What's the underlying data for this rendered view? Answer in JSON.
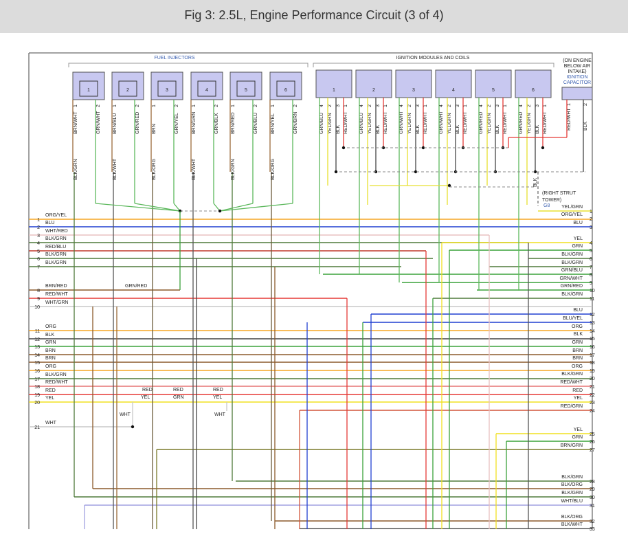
{
  "header": {
    "title": "Fig 3: 2.5L, Engine Performance Circuit (3 of 4)"
  },
  "labels": {
    "fuel_injectors": "FUEL INJECTORS",
    "ignition": "IGNITION MODULES AND COILS",
    "capacitor_note": [
      "(ON ENGINE",
      "BELOW AIR",
      "INTAKE)"
    ],
    "capacitor_name": [
      "IGNITION",
      "CAPACITOR"
    ],
    "ground_wire": "BLK",
    "ground_note": [
      "(RIGHT STRUT",
      "TOWER)"
    ],
    "ground_id": "G8"
  },
  "injectors": [
    {
      "number": "1",
      "pins": [
        {
          "pin": "1",
          "wire": "BRN/WHT",
          "color": "#9a6a3a"
        },
        {
          "pin": "2",
          "wire": "GRN/WHT",
          "color": "#5cb85c"
        }
      ],
      "lower_wire": "BLK/GRN",
      "lower_color": "#4f7a3a"
    },
    {
      "number": "2",
      "pins": [
        {
          "pin": "1",
          "wire": "BRN/BLU",
          "color": "#9a6a3a"
        },
        {
          "pin": "2",
          "wire": "GRN/RED",
          "color": "#5cb85c"
        }
      ],
      "lower_wire": "BLK/WHT",
      "lower_color": "#555"
    },
    {
      "number": "3",
      "pins": [
        {
          "pin": "1",
          "wire": "BRN",
          "color": "#9a6a3a"
        },
        {
          "pin": "2",
          "wire": "GRN/YEL",
          "color": "#5cb85c"
        }
      ],
      "lower_wire": "BLK/ORG",
      "lower_color": "#6b5a3a"
    },
    {
      "number": "4",
      "pins": [
        {
          "pin": "1",
          "wire": "BRN/GRN",
          "color": "#9a6a3a"
        },
        {
          "pin": "2",
          "wire": "GRN/BLK",
          "color": "#5cb85c"
        }
      ],
      "lower_wire": "BLK/WHT",
      "lower_color": "#555"
    },
    {
      "number": "5",
      "pins": [
        {
          "pin": "1",
          "wire": "BRN/RED",
          "color": "#9a6a3a"
        },
        {
          "pin": "2",
          "wire": "GRN/BLU",
          "color": "#5cb85c"
        }
      ],
      "lower_wire": "BLK/GRN",
      "lower_color": "#4f7a3a"
    },
    {
      "number": "6",
      "pins": [
        {
          "pin": "1",
          "wire": "BRN/YEL",
          "color": "#9a6a3a"
        },
        {
          "pin": "2",
          "wire": "GRN/BRN",
          "color": "#5cb85c"
        }
      ],
      "lower_wire": "BLK/ORG",
      "lower_color": "#6b5a3a"
    }
  ],
  "modules": [
    {
      "number": "1",
      "pins": [
        {
          "pin": "4",
          "wire": "GRN/BLU",
          "color": "#5cb85c"
        },
        {
          "pin": "2",
          "wire": "YEL/GRN",
          "color": "#e8e030"
        },
        {
          "pin": "3",
          "wire": "BLK",
          "color": "#444"
        },
        {
          "pin": "1",
          "wire": "RED/WHT",
          "color": "#e53935"
        }
      ]
    },
    {
      "number": "2",
      "pins": [
        {
          "pin": "4",
          "wire": "GRN/BLU",
          "color": "#5cb85c"
        },
        {
          "pin": "2",
          "wire": "YEL/GRN",
          "color": "#e8e030"
        },
        {
          "pin": "3",
          "wire": "BLK",
          "color": "#444"
        },
        {
          "pin": "1",
          "wire": "RED/WHT",
          "color": "#e53935"
        }
      ]
    },
    {
      "number": "3",
      "pins": [
        {
          "pin": "4",
          "wire": "GRN/WHT",
          "color": "#5cb85c"
        },
        {
          "pin": "2",
          "wire": "YEL/GRN",
          "color": "#e8e030"
        },
        {
          "pin": "3",
          "wire": "BLK",
          "color": "#444"
        },
        {
          "pin": "1",
          "wire": "RED/WHT",
          "color": "#e53935"
        }
      ]
    },
    {
      "number": "4",
      "pins": [
        {
          "pin": "4",
          "wire": "GRN/WHT",
          "color": "#5cb85c"
        },
        {
          "pin": "2",
          "wire": "YEL/GRN",
          "color": "#e8e030"
        },
        {
          "pin": "3",
          "wire": "BLK",
          "color": "#444"
        },
        {
          "pin": "1",
          "wire": "RED/WHT",
          "color": "#e53935"
        }
      ]
    },
    {
      "number": "5",
      "pins": [
        {
          "pin": "4",
          "wire": "GRN/RED",
          "color": "#5cb85c"
        },
        {
          "pin": "2",
          "wire": "YEL/GRN",
          "color": "#e8e030"
        },
        {
          "pin": "3",
          "wire": "BLK",
          "color": "#444"
        },
        {
          "pin": "1",
          "wire": "RED/WHT",
          "color": "#e53935"
        }
      ]
    },
    {
      "number": "6",
      "pins": [
        {
          "pin": "4",
          "wire": "GRN/RED",
          "color": "#5cb85c"
        },
        {
          "pin": "2",
          "wire": "YEL/GRN",
          "color": "#e8e030"
        },
        {
          "pin": "3",
          "wire": "BLK",
          "color": "#444"
        },
        {
          "pin": "1",
          "wire": "RED/WHT",
          "color": "#e53935"
        }
      ]
    }
  ],
  "capacitor": {
    "pins": [
      {
        "pin": "1",
        "wire": "RED/WHT",
        "color": "#e53935"
      },
      {
        "pin": "2",
        "wire": "BLK",
        "color": "#444"
      }
    ]
  },
  "left_rows": [
    {
      "number": "1",
      "label": "ORG/YEL",
      "color": "#f5a623"
    },
    {
      "number": "2",
      "label": "BLU",
      "color": "#1f3fd1"
    },
    {
      "number": "3",
      "label": "WHT/RED",
      "color": "#e8c0c0"
    },
    {
      "number": "4",
      "label": "BLK/GRN",
      "color": "#4f7a3a"
    },
    {
      "number": "5",
      "label": "RED/BLU",
      "color": "#c0392b"
    },
    {
      "number": "6",
      "label": "BLK/GRN",
      "color": "#4f7a3a"
    },
    {
      "number": "7",
      "label": "BLK/GRN",
      "color": "#4f7a3a"
    },
    {
      "number": "8",
      "label": "BRN/RED",
      "color": "#8b5a2b"
    },
    {
      "number": "9",
      "label": "RED/WHT",
      "color": "#e53935"
    },
    {
      "number": "10",
      "label": "WHT/GRN",
      "color": "#c8c8c8"
    },
    {
      "number": "11",
      "label": "ORG",
      "color": "#f5a623"
    },
    {
      "number": "12",
      "label": "BLK",
      "color": "#444"
    },
    {
      "number": "13",
      "label": "GRN",
      "color": "#3aa23a"
    },
    {
      "number": "14",
      "label": "BRN",
      "color": "#8b5a2b"
    },
    {
      "number": "15",
      "label": "BRN",
      "color": "#8b5a2b"
    },
    {
      "number": "16",
      "label": "ORG",
      "color": "#f5a623"
    },
    {
      "number": "17",
      "label": "BLK/GRN",
      "color": "#4f7a3a"
    },
    {
      "number": "18",
      "label": "RED/WHT",
      "color": "#e57373"
    },
    {
      "number": "19",
      "label": "RED",
      "color": "#e53935"
    },
    {
      "number": "20",
      "label": "YEL",
      "color": "#f0e020"
    },
    {
      "number": "21",
      "label": "WHT",
      "color": "#c8c8c8"
    }
  ],
  "right_rows": [
    {
      "number": "1",
      "label": "YEL/GRN",
      "color": "#e8e030"
    },
    {
      "number": "2",
      "label": "ORG/YEL",
      "color": "#f5a623"
    },
    {
      "number": "3",
      "label": "BLU",
      "color": "#1f3fd1"
    },
    {
      "number": "4",
      "label": "YEL",
      "color": "#f0e020"
    },
    {
      "number": "5",
      "label": "GRN",
      "color": "#3aa23a"
    },
    {
      "number": "6",
      "label": "BLK/GRN",
      "color": "#4f7a3a"
    },
    {
      "number": "7",
      "label": "BLK/GRN",
      "color": "#4f7a3a"
    },
    {
      "number": "8",
      "label": "GRN/BLU",
      "color": "#3aa23a"
    },
    {
      "number": "9",
      "label": "GRN/WHT",
      "color": "#3aa23a"
    },
    {
      "number": "10",
      "label": "GRN/RED",
      "color": "#3aa23a"
    },
    {
      "number": "11",
      "label": "BLK/GRN",
      "color": "#4f7a3a"
    },
    {
      "number": "12",
      "label": "BLU",
      "color": "#1f3fd1"
    },
    {
      "number": "13",
      "label": "BLU/YEL",
      "color": "#1f3fd1"
    },
    {
      "number": "14",
      "label": "ORG",
      "color": "#f5a623"
    },
    {
      "number": "15",
      "label": "BLK",
      "color": "#444"
    },
    {
      "number": "16",
      "label": "GRN",
      "color": "#3aa23a"
    },
    {
      "number": "17",
      "label": "BRN",
      "color": "#8b5a2b"
    },
    {
      "number": "18",
      "label": "BRN",
      "color": "#8b5a2b"
    },
    {
      "number": "19",
      "label": "ORG",
      "color": "#f5a623"
    },
    {
      "number": "20",
      "label": "BLK/GRN",
      "color": "#4f7a3a"
    },
    {
      "number": "21",
      "label": "RED/WHT",
      "color": "#e57373"
    },
    {
      "number": "22",
      "label": "RED",
      "color": "#e53935"
    },
    {
      "number": "23",
      "label": "YEL",
      "color": "#f0e020"
    },
    {
      "number": "24",
      "label": "RED/GRN",
      "color": "#d2553a"
    },
    {
      "number": "25",
      "label": "YEL",
      "color": "#f0e020"
    },
    {
      "number": "26",
      "label": "GRN",
      "color": "#3aa23a"
    },
    {
      "number": "27",
      "label": "BRN/GRN",
      "color": "#7a7a2a"
    },
    {
      "number": "28",
      "label": "BLK/GRN",
      "color": "#4f7a3a"
    },
    {
      "number": "29",
      "label": "BLK/ORG",
      "color": "#8b5a2b"
    },
    {
      "number": "30",
      "label": "BLK/GRN",
      "color": "#4f7a3a"
    },
    {
      "number": "31",
      "label": "WHT/BLU",
      "color": "#a0a0e0"
    },
    {
      "number": "32",
      "label": "BLK/ORG",
      "color": "#8b5a2b"
    },
    {
      "number": "33",
      "label": "BLK/WHT",
      "color": "#555"
    }
  ],
  "splice_labels": [
    "GRN/RED",
    "RED",
    "YEL",
    "RED",
    "GRN",
    "RED",
    "YEL",
    "WHT",
    "WHT"
  ]
}
